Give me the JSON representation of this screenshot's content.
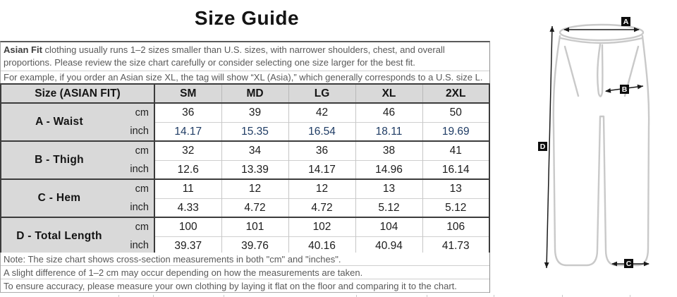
{
  "title": "Size Guide",
  "intro": {
    "bold_lead": "Asian Fit",
    "para1_rest": " clothing usually runs 1–2 sizes smaller than U.S. sizes, with narrower shoulders, chest, and overall proportions. Please review the size chart carefully or consider selecting one size larger for the best fit.",
    "para2": "For example, if you order an Asian size XL, the tag will show “XL (Asia),” which generally corresponds to a U.S. size L."
  },
  "table": {
    "header": {
      "label": "Size (ASIAN FIT)",
      "sizes": [
        "SM",
        "MD",
        "LG",
        "XL",
        "2XL"
      ]
    },
    "units": [
      "cm",
      "inch"
    ],
    "groups": [
      {
        "label": "A - Waist",
        "cm": [
          "36",
          "39",
          "42",
          "46",
          "50"
        ],
        "inch": [
          "14.17",
          "15.35",
          "16.54",
          "18.11",
          "19.69"
        ],
        "inch_hex": "#1f3c64"
      },
      {
        "label": "B - Thigh",
        "cm": [
          "32",
          "34",
          "36",
          "38",
          "41"
        ],
        "inch": [
          "12.6",
          "13.39",
          "14.17",
          "14.96",
          "16.14"
        ],
        "inch_hex": "#1c1c1c"
      },
      {
        "label": "C - Hem",
        "cm": [
          "11",
          "12",
          "12",
          "13",
          "13"
        ],
        "inch": [
          "4.33",
          "4.72",
          "4.72",
          "5.12",
          "5.12"
        ],
        "inch_hex": "#1c1c1c"
      },
      {
        "label": "D - Total Length",
        "cm": [
          "100",
          "101",
          "102",
          "104",
          "106"
        ],
        "inch": [
          "39.37",
          "39.76",
          "40.16",
          "40.94",
          "41.73"
        ],
        "inch_hex": "#1c1c1c"
      }
    ]
  },
  "notes": [
    "Note: The size chart shows cross-section measurements in both \"cm\" and \"inches\".",
    "A slight difference of 1–2 cm may occur depending on how the measurements are taken.",
    "To ensure accuracy, please measure your own clothing by laying it flat on the floor and comparing it to the chart."
  ],
  "diagram": {
    "markers": [
      "A",
      "B",
      "C",
      "D"
    ]
  },
  "colors": {
    "accent_navy": "#1f3c64",
    "header_gray": "#d9d9d9",
    "border_dark": "#3c3c3c",
    "border_light": "#c6c6c6",
    "text_gray": "#595959",
    "diagram_stroke": "#c9c9c9",
    "marker_bg": "#0d0d0d"
  }
}
